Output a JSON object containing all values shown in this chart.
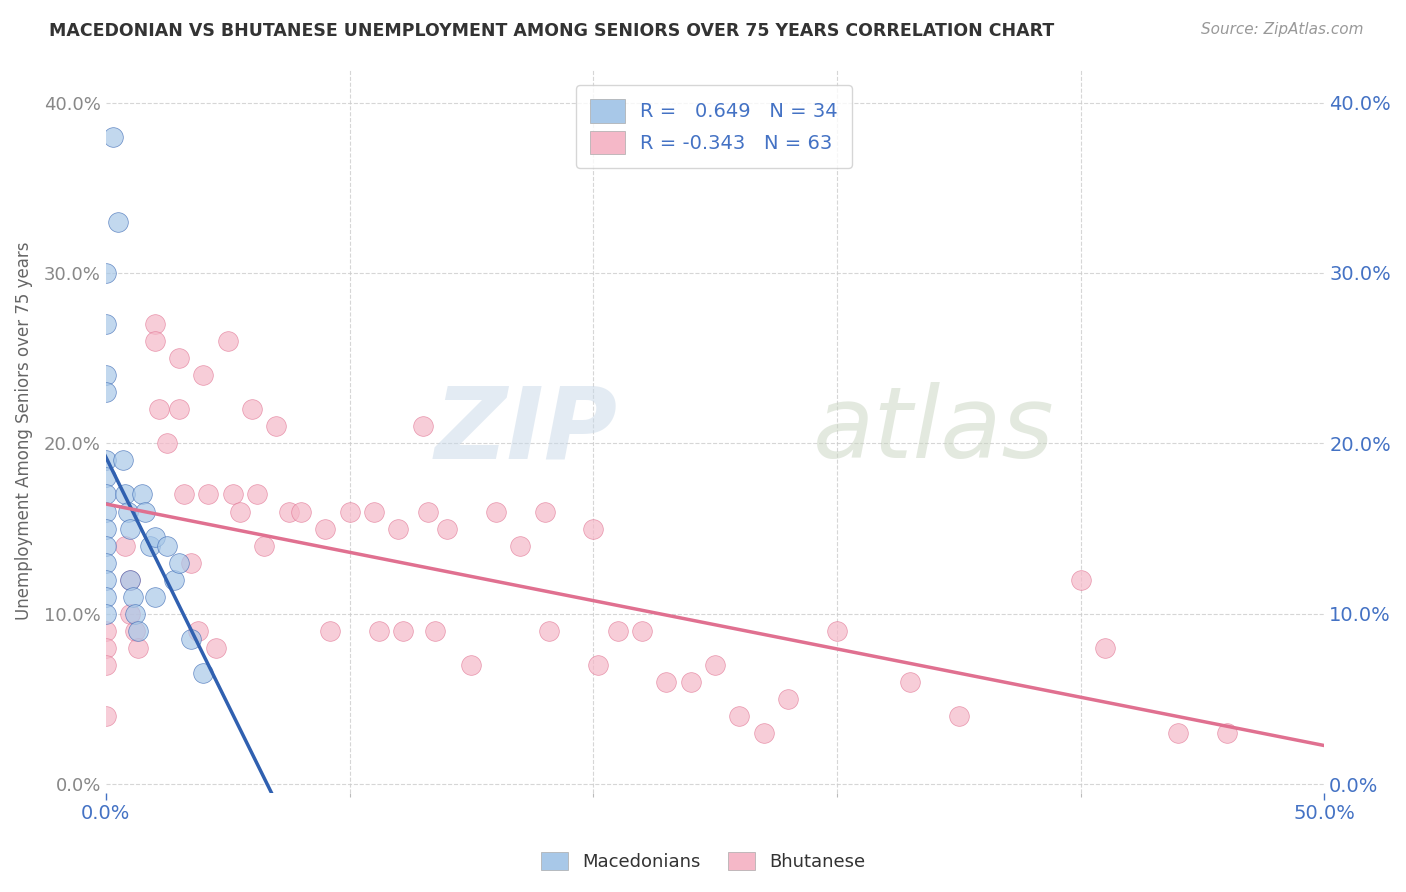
{
  "title": "MACEDONIAN VS BHUTANESE UNEMPLOYMENT AMONG SENIORS OVER 75 YEARS CORRELATION CHART",
  "source": "Source: ZipAtlas.com",
  "ylabel": "Unemployment Among Seniors over 75 years",
  "xlim": [
    0.0,
    0.5
  ],
  "ylim": [
    -0.005,
    0.42
  ],
  "macedonian_color": "#a8c8e8",
  "bhutanese_color": "#f5b8c8",
  "macedonian_line_color": "#3060b0",
  "bhutanese_line_color": "#e07090",
  "macedonian_R": 0.649,
  "macedonian_N": 34,
  "bhutanese_R": -0.343,
  "bhutanese_N": 63,
  "background_color": "#ffffff",
  "watermark_zip": "ZIP",
  "watermark_atlas": "atlas",
  "macedonian_x": [
    0.0,
    0.0,
    0.0,
    0.0,
    0.0,
    0.0,
    0.0,
    0.0,
    0.0,
    0.0,
    0.0,
    0.0,
    0.0,
    0.0,
    0.003,
    0.005,
    0.007,
    0.008,
    0.009,
    0.01,
    0.01,
    0.011,
    0.012,
    0.013,
    0.015,
    0.016,
    0.018,
    0.02,
    0.02,
    0.025,
    0.028,
    0.03,
    0.035,
    0.04
  ],
  "macedonian_y": [
    0.3,
    0.27,
    0.24,
    0.23,
    0.19,
    0.18,
    0.17,
    0.16,
    0.15,
    0.14,
    0.13,
    0.12,
    0.11,
    0.1,
    0.38,
    0.33,
    0.19,
    0.17,
    0.16,
    0.15,
    0.12,
    0.11,
    0.1,
    0.09,
    0.17,
    0.16,
    0.14,
    0.145,
    0.11,
    0.14,
    0.12,
    0.13,
    0.085,
    0.065
  ],
  "bhutanese_x": [
    0.0,
    0.0,
    0.0,
    0.0,
    0.008,
    0.01,
    0.01,
    0.012,
    0.013,
    0.02,
    0.02,
    0.022,
    0.025,
    0.03,
    0.03,
    0.032,
    0.035,
    0.038,
    0.04,
    0.042,
    0.045,
    0.05,
    0.052,
    0.055,
    0.06,
    0.062,
    0.065,
    0.07,
    0.075,
    0.08,
    0.09,
    0.092,
    0.1,
    0.11,
    0.112,
    0.12,
    0.122,
    0.13,
    0.132,
    0.135,
    0.14,
    0.15,
    0.16,
    0.17,
    0.18,
    0.182,
    0.2,
    0.202,
    0.21,
    0.22,
    0.23,
    0.24,
    0.25,
    0.26,
    0.27,
    0.28,
    0.3,
    0.33,
    0.35,
    0.4,
    0.41,
    0.44,
    0.46
  ],
  "bhutanese_y": [
    0.09,
    0.08,
    0.07,
    0.04,
    0.14,
    0.12,
    0.1,
    0.09,
    0.08,
    0.27,
    0.26,
    0.22,
    0.2,
    0.25,
    0.22,
    0.17,
    0.13,
    0.09,
    0.24,
    0.17,
    0.08,
    0.26,
    0.17,
    0.16,
    0.22,
    0.17,
    0.14,
    0.21,
    0.16,
    0.16,
    0.15,
    0.09,
    0.16,
    0.16,
    0.09,
    0.15,
    0.09,
    0.21,
    0.16,
    0.09,
    0.15,
    0.07,
    0.16,
    0.14,
    0.16,
    0.09,
    0.15,
    0.07,
    0.09,
    0.09,
    0.06,
    0.06,
    0.07,
    0.04,
    0.03,
    0.05,
    0.09,
    0.06,
    0.04,
    0.12,
    0.08,
    0.03,
    0.03
  ]
}
